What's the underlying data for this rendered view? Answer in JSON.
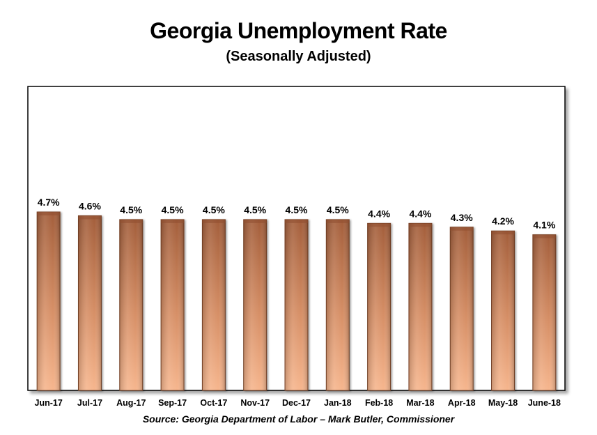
{
  "chart_data": {
    "type": "bar",
    "title": "Georgia Unemployment Rate",
    "subtitle": "(Seasonally Adjusted)",
    "categories": [
      "Jun-17",
      "Jul-17",
      "Aug-17",
      "Sep-17",
      "Oct-17",
      "Nov-17",
      "Dec-17",
      "Jan-18",
      "Feb-18",
      "Mar-18",
      "Apr-18",
      "May-18",
      "June-18"
    ],
    "values": [
      4.7,
      4.6,
      4.5,
      4.5,
      4.5,
      4.5,
      4.5,
      4.5,
      4.4,
      4.4,
      4.3,
      4.2,
      4.1
    ],
    "value_labels": [
      "4.7%",
      "4.6%",
      "4.5%",
      "4.5%",
      "4.5%",
      "4.5%",
      "4.5%",
      "4.5%",
      "4.4%",
      "4.4%",
      "4.3%",
      "4.2%",
      "4.1%"
    ],
    "ylim": [
      0,
      4.7
    ],
    "grid": false,
    "legend": "none",
    "bar_color": "#c8825a",
    "source": "Source:  Georgia Department of Labor – Mark Butler, Commissioner"
  }
}
